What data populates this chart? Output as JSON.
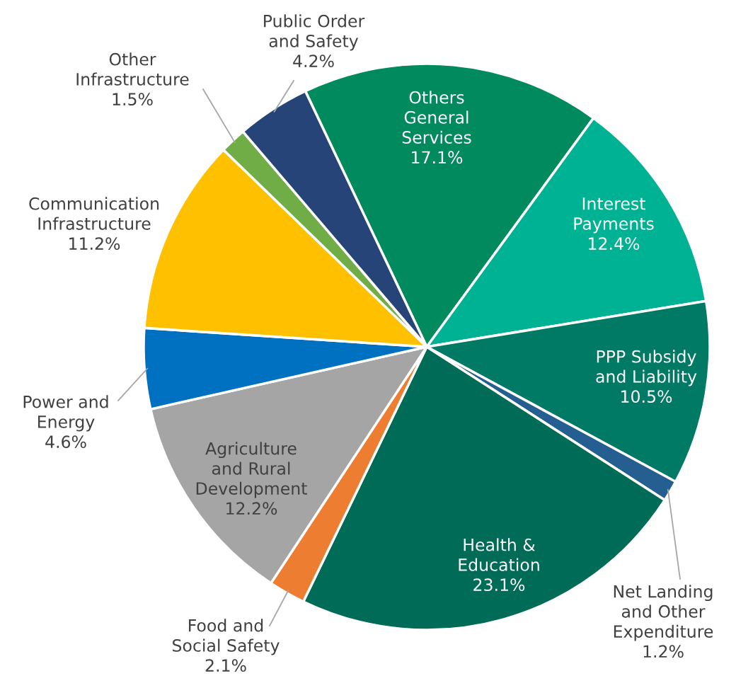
{
  "chart_data": {
    "type": "pie",
    "categories": [
      "Others\nGeneral\nServices",
      "Interest\nPayments",
      "PPP Subsidy\nand Liability",
      "Net Landing\nand Other\nExpenditure",
      "Health &\nEducation",
      "Food and\nSocial Safety",
      "Agriculture\nand Rural\nDevelopment",
      "Power and\nEnergy",
      "Communication\nInfrastructure",
      "Other\nInfrastructure",
      "Public Order\nand Safety"
    ],
    "values": [
      17.1,
      12.4,
      10.5,
      1.2,
      23.1,
      2.1,
      12.2,
      4.6,
      11.2,
      1.5,
      4.2
    ],
    "colors": [
      "#008a5e",
      "#00b294",
      "#007a65",
      "#255e91",
      "#006b56",
      "#ed7d31",
      "#a5a5a5",
      "#0070c0",
      "#ffc000",
      "#70ad47",
      "#264478"
    ],
    "value_labels": [
      "17.1%",
      "12.4%",
      "10.5%",
      "1.2%",
      "23.1%",
      "2.1%",
      "12.2%",
      "4.6%",
      "11.2%",
      "1.5%",
      "4.2%"
    ]
  }
}
